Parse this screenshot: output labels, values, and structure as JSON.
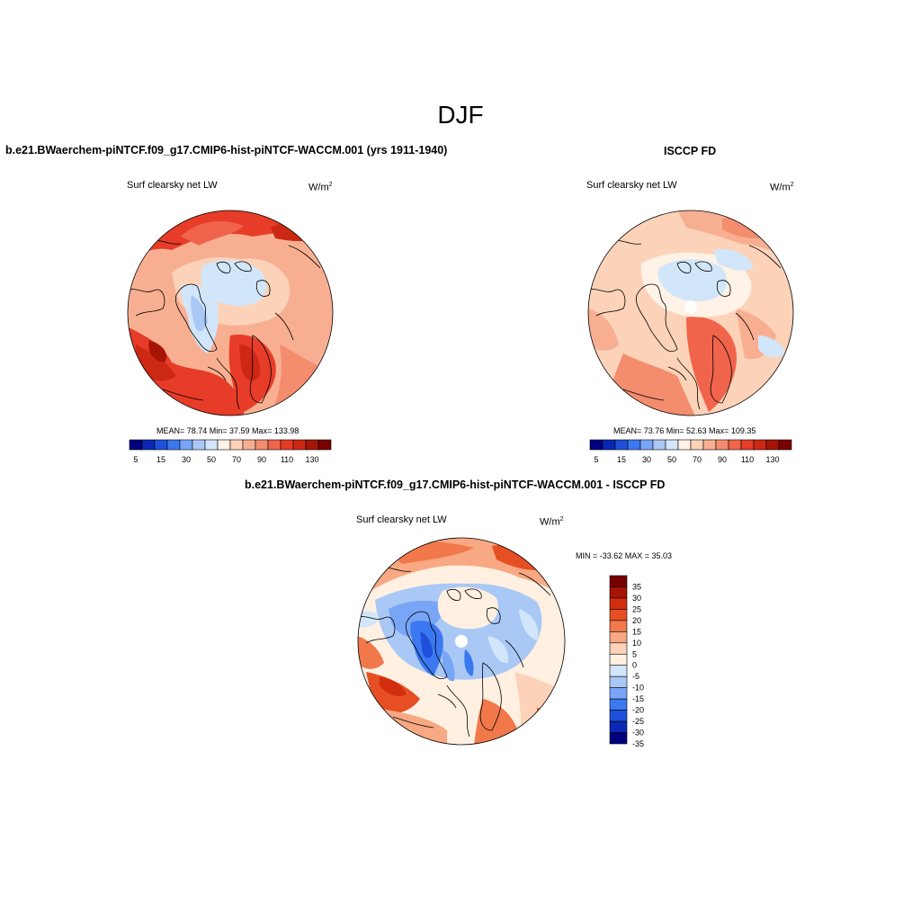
{
  "figure": {
    "title": "DJF"
  },
  "panel_model": {
    "case_title": "b.e21.BWaerchem-piNTCF.f09_g17.CMIP6-hist-piNTCF-WACCM.001 (yrs 1911-1940)",
    "variable": "Surf clearsky net LW",
    "units_base": "W/m",
    "units_exp": "2",
    "stats": "MEAN=  78.74  Min=  37.59  Max= 133.98"
  },
  "panel_obs": {
    "case_title": "ISCCP FD",
    "variable": "Surf clearsky net LW",
    "units_base": "W/m",
    "units_exp": "2",
    "stats": "MEAN=  73.76  Min=  52.63  Max= 109.35"
  },
  "panel_diff": {
    "case_title": "b.e21.BWaerchem-piNTCF.f09_g17.CMIP6-hist-piNTCF-WACCM.001 - ISCCP FD",
    "variable": "Surf clearsky net LW",
    "units_base": "W/m",
    "units_exp": "2",
    "stats": "MIN = -33.62 MAX =  35.03"
  },
  "colorbar_abs": {
    "colors": [
      "#00007f",
      "#0a28b4",
      "#1e50dc",
      "#3c78f0",
      "#78a5f5",
      "#aac8f5",
      "#d2e6fa",
      "#fff2e6",
      "#fcd2b9",
      "#f8af91",
      "#f48c6e",
      "#f0644b",
      "#e63c28",
      "#cd2814",
      "#a51405",
      "#780000"
    ],
    "tick_labels": [
      "5",
      "15",
      "30",
      "50",
      "70",
      "90",
      "110",
      "130"
    ]
  },
  "colorbar_diff": {
    "colors": [
      "#00007f",
      "#0a28b4",
      "#1e50dc",
      "#3c78f0",
      "#78a5f5",
      "#aac8f5",
      "#d2e6fa",
      "#fff0e1",
      "#fcd2b9",
      "#f8a882",
      "#f0784b",
      "#e64f23",
      "#d22d0f",
      "#a51405",
      "#780000"
    ],
    "tick_labels": [
      "35",
      "30",
      "25",
      "20",
      "15",
      "10",
      "5",
      "0",
      "-5",
      "-10",
      "-15",
      "-20",
      "-25",
      "-30",
      "-35"
    ]
  }
}
